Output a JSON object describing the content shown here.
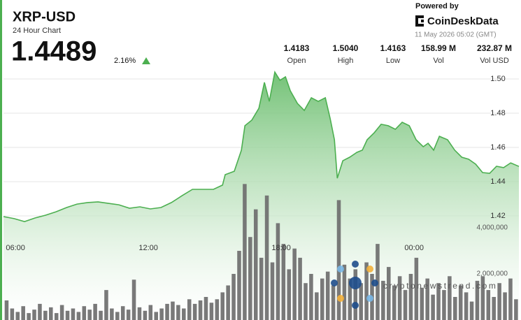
{
  "header": {
    "title": "XRP-USD",
    "subtitle": "24 Hour Chart",
    "price": "1.4489",
    "change": "2.16%",
    "powered_by": "Powered by",
    "brand": "CoinDeskData",
    "timestamp": "11 May 2026 05:02 (GMT)",
    "stats": [
      {
        "value": "1.4183",
        "label": "Open"
      },
      {
        "value": "1.5040",
        "label": "High"
      },
      {
        "value": "1.4163",
        "label": "Low"
      },
      {
        "value": "158.99 M",
        "label": "Vol"
      },
      {
        "value": "232.87 M",
        "label": "Vol USD"
      }
    ]
  },
  "watermark": "cryptonewstrend.com",
  "chart_data": {
    "type": "area",
    "xlim": [
      5.46,
      28.73
    ],
    "xticks": [
      {
        "value": 6,
        "label": "06:00"
      },
      {
        "value": 12,
        "label": "12:00"
      },
      {
        "value": 18,
        "label": "18:00"
      },
      {
        "value": 24,
        "label": "00:00"
      }
    ],
    "ylim": [
      1.3592,
      1.5053
    ],
    "yticks": [
      1.42,
      1.44,
      1.46,
      1.48,
      {
        "value": 1.5,
        "label": "1.50"
      }
    ],
    "y2lim": [
      0,
      10850000
    ],
    "y2ticks": [
      {
        "value": 2000000,
        "label": "2,000,000"
      },
      {
        "value": 4000000,
        "label": "4,000,000"
      }
    ],
    "grid": true,
    "series": [
      {
        "color": "#4caf50",
        "x": [
          5.46,
          5.94,
          6.41,
          6.88,
          7.36,
          7.83,
          8.31,
          8.78,
          9.25,
          9.73,
          10.2,
          10.67,
          11.15,
          11.62,
          12.09,
          12.57,
          13.04,
          13.52,
          13.99,
          14.46,
          14.94,
          15.35,
          15.47,
          15.88,
          16.2,
          16.36,
          16.67,
          16.99,
          17.24,
          17.46,
          17.71,
          17.94,
          18.19,
          18.41,
          18.73,
          19.04,
          19.36,
          19.67,
          19.99,
          20.21,
          20.4,
          20.53,
          20.78,
          21.09,
          21.41,
          21.66,
          21.88,
          22.2,
          22.51,
          22.83,
          23.15,
          23.46,
          23.78,
          24.09,
          24.41,
          24.63,
          24.88,
          25.14,
          25.51,
          25.83,
          26.15,
          26.46,
          26.78,
          27.09,
          27.41,
          27.72,
          28.04,
          28.36,
          28.73
        ],
        "values": [
          1.4196,
          1.4184,
          1.4167,
          1.4188,
          1.4204,
          1.4224,
          1.4249,
          1.4269,
          1.4278,
          1.4282,
          1.4273,
          1.4265,
          1.4245,
          1.4253,
          1.4241,
          1.4249,
          1.4278,
          1.4318,
          1.4355,
          1.4355,
          1.4355,
          1.438,
          1.4441,
          1.4461,
          1.4584,
          1.4727,
          1.4759,
          1.4829,
          1.498,
          1.4869,
          1.504,
          1.4992,
          1.5012,
          1.4931,
          1.4857,
          1.4816,
          1.489,
          1.4869,
          1.489,
          1.4767,
          1.4645,
          1.442,
          1.4522,
          1.4543,
          1.4571,
          1.4584,
          1.4645,
          1.4686,
          1.4735,
          1.4727,
          1.4706,
          1.4747,
          1.4727,
          1.4645,
          1.4604,
          1.4624,
          1.4584,
          1.4665,
          1.4645,
          1.4584,
          1.4543,
          1.4531,
          1.4502,
          1.4453,
          1.4449,
          1.449,
          1.4482,
          1.451,
          1.4489
        ]
      },
      {
        "type": "bar",
        "axis": "y2",
        "color": "#6e6e6e",
        "x": [
          5.6,
          5.85,
          6.1,
          6.35,
          6.6,
          6.85,
          7.1,
          7.35,
          7.6,
          7.85,
          8.1,
          8.35,
          8.6,
          8.85,
          9.1,
          9.35,
          9.6,
          9.85,
          10.1,
          10.35,
          10.6,
          10.85,
          11.1,
          11.35,
          11.6,
          11.85,
          12.1,
          12.35,
          12.6,
          12.85,
          13.1,
          13.35,
          13.6,
          13.85,
          14.1,
          14.35,
          14.6,
          14.85,
          15.1,
          15.35,
          15.6,
          15.85,
          16.1,
          16.35,
          16.6,
          16.85,
          17.1,
          17.35,
          17.6,
          17.85,
          18.1,
          18.35,
          18.6,
          18.85,
          19.1,
          19.35,
          19.6,
          19.85,
          20.1,
          20.35,
          20.6,
          20.85,
          21.1,
          21.35,
          21.6,
          21.85,
          22.1,
          22.35,
          22.6,
          22.85,
          23.1,
          23.35,
          23.6,
          23.85,
          24.1,
          24.35,
          24.6,
          24.85,
          25.1,
          25.35,
          25.6,
          25.85,
          26.1,
          26.35,
          26.6,
          26.85,
          27.1,
          27.35,
          27.6,
          27.85,
          28.1,
          28.35,
          28.6
        ],
        "values": [
          850000,
          500000,
          350000,
          600000,
          300000,
          450000,
          700000,
          400000,
          550000,
          300000,
          650000,
          400000,
          500000,
          350000,
          600000,
          450000,
          700000,
          400000,
          1300000,
          500000,
          350000,
          600000,
          450000,
          1750000,
          550000,
          400000,
          650000,
          350000,
          500000,
          700000,
          800000,
          650000,
          500000,
          900000,
          700000,
          850000,
          1000000,
          750000,
          900000,
          1200000,
          1500000,
          2000000,
          3000000,
          5900000,
          3600000,
          4800000,
          2700000,
          5400000,
          2500000,
          4200000,
          3300000,
          2200000,
          3100000,
          2700000,
          1600000,
          2000000,
          1200000,
          1800000,
          2100000,
          1500000,
          5200000,
          2400000,
          1800000,
          2200000,
          1600000,
          2500000,
          2000000,
          3300000,
          1700000,
          2300000,
          1500000,
          1900000,
          1300000,
          2000000,
          2700000,
          1400000,
          1800000,
          1100000,
          1600000,
          1300000,
          1900000,
          1000000,
          1500000,
          1200000,
          800000,
          1700000,
          1900000,
          1300000,
          1000000,
          1600000,
          1200000,
          1800000,
          900000
        ]
      }
    ]
  }
}
